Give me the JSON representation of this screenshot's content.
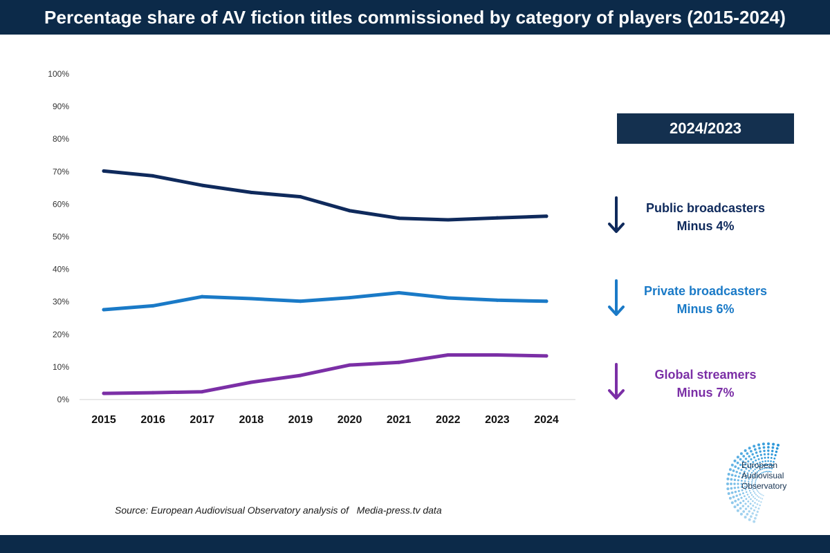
{
  "header": {
    "title": "Percentage share of AV fiction titles commissioned by category of players (2015-2024)"
  },
  "panel": {
    "period": "2024/2023",
    "changes": [
      {
        "name": "Public broadcasters",
        "change": "Minus 4%",
        "color": "#0f2a5c",
        "icon": "arrow-down-icon"
      },
      {
        "name": "Private broadcasters",
        "change": "Minus 6%",
        "color": "#1a7ac7",
        "icon": "arrow-down-icon"
      },
      {
        "name": "Global streamers",
        "change": "Minus 7%",
        "color": "#7b2fa6",
        "icon": "arrow-down-icon"
      }
    ]
  },
  "source": "Source: European Audiovisual Observatory analysis of   Media-press.tv data",
  "logo": {
    "lines": [
      "European",
      "Audiovisual",
      "Observatory"
    ],
    "color": "#1a8fd6"
  },
  "chart_data": {
    "type": "line",
    "title": "Percentage share of AV fiction titles commissioned by category of players (2015-2024)",
    "x": [
      "2015",
      "2016",
      "2017",
      "2018",
      "2019",
      "2020",
      "2021",
      "2022",
      "2023",
      "2024"
    ],
    "ylim": [
      0,
      100
    ],
    "yticks": [
      "0%",
      "10%",
      "20%",
      "30%",
      "40%",
      "50%",
      "60%",
      "70%",
      "80%",
      "90%",
      "100%"
    ],
    "grid": false,
    "series": [
      {
        "name": "Public broadcasters",
        "color": "#0f2a5c",
        "values": [
          70.2,
          68.7,
          65.8,
          63.6,
          62.3,
          58.0,
          55.7,
          55.2,
          55.8,
          56.3
        ]
      },
      {
        "name": "Private broadcasters",
        "color": "#1a7ac7",
        "values": [
          27.6,
          28.8,
          31.6,
          31.0,
          30.2,
          31.3,
          32.8,
          31.2,
          30.5,
          30.2
        ]
      },
      {
        "name": "Global streamers",
        "color": "#7b2fa6",
        "values": [
          1.9,
          2.1,
          2.4,
          5.3,
          7.4,
          10.6,
          11.4,
          13.7,
          13.7,
          13.4
        ]
      }
    ]
  }
}
